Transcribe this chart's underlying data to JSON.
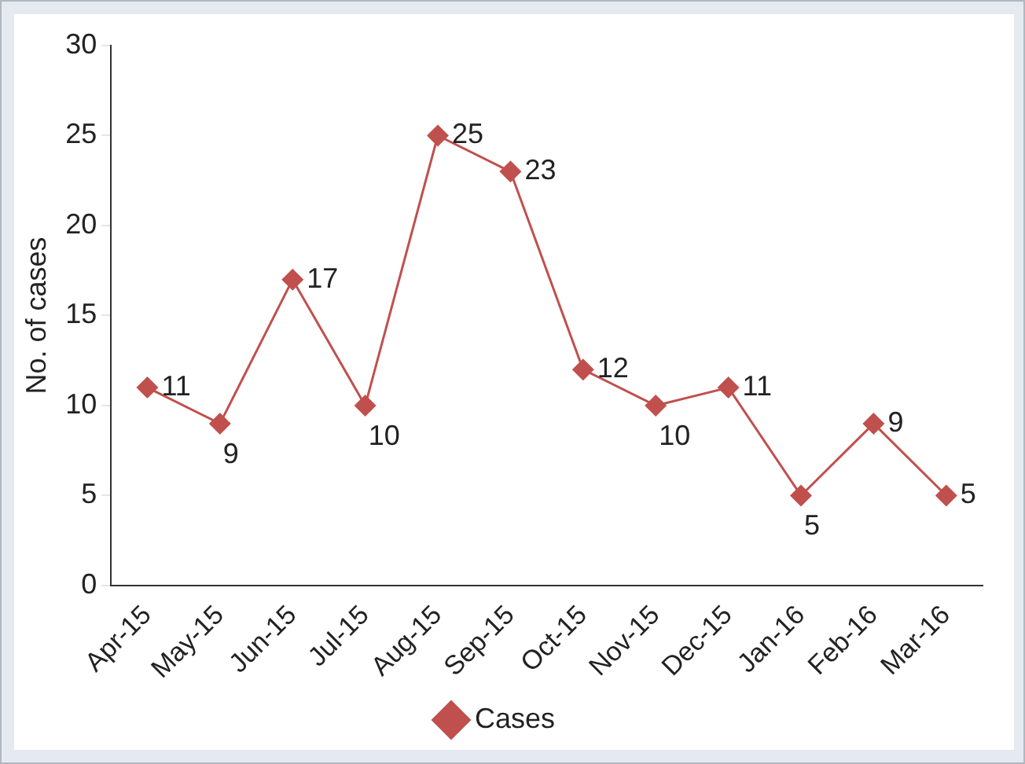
{
  "chart_data": {
    "type": "line",
    "ylabel": "No. of cases",
    "categories": [
      "Apr-15",
      "May-15",
      "Jun-15",
      "Jul-15",
      "Aug-15",
      "Sep-15",
      "Oct-15",
      "Nov-15",
      "Dec-15",
      "Jan-16",
      "Feb-16",
      "Mar-16"
    ],
    "series": [
      {
        "name": "Cases",
        "color": "#c0504d",
        "values": [
          11,
          9,
          17,
          10,
          25,
          23,
          12,
          10,
          11,
          5,
          9,
          5
        ]
      }
    ],
    "ylim": [
      0,
      30
    ],
    "yticks": [
      0,
      5,
      10,
      15,
      20,
      25,
      30
    ],
    "grid": false,
    "legend": "bottom",
    "marker": "diamond",
    "line_style": "solid",
    "data_labels": true
  }
}
